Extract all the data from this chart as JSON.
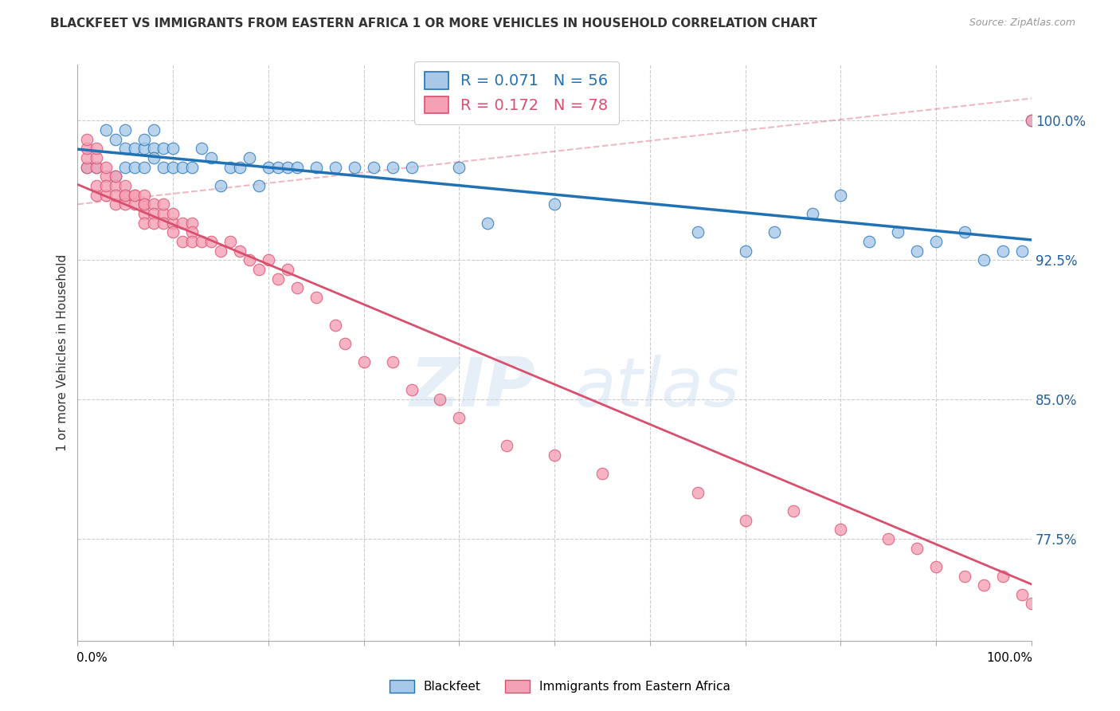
{
  "title": "BLACKFEET VS IMMIGRANTS FROM EASTERN AFRICA 1 OR MORE VEHICLES IN HOUSEHOLD CORRELATION CHART",
  "source": "Source: ZipAtlas.com",
  "ylabel": "1 or more Vehicles in Household",
  "legend_blackfeet": "Blackfeet",
  "legend_immigrants": "Immigrants from Eastern Africa",
  "r_blackfeet": 0.071,
  "n_blackfeet": 56,
  "r_immigrants": 0.172,
  "n_immigrants": 78,
  "x_min": 0.0,
  "x_max": 1.0,
  "y_min": 0.72,
  "y_max": 1.03,
  "y_ticks": [
    0.775,
    0.85,
    0.925,
    1.0
  ],
  "y_tick_labels": [
    "77.5%",
    "85.0%",
    "92.5%",
    "100.0%"
  ],
  "color_blackfeet": "#a8c8e8",
  "color_blackfeet_line": "#2171b5",
  "color_immigrants": "#f4a0b5",
  "color_immigrants_line": "#d94f6e",
  "color_dashed": "#e08090",
  "watermark_zip": "ZIP",
  "watermark_atlas": "atlas",
  "blackfeet_x": [
    0.01,
    0.02,
    0.03,
    0.04,
    0.04,
    0.05,
    0.05,
    0.05,
    0.06,
    0.06,
    0.07,
    0.07,
    0.07,
    0.08,
    0.08,
    0.08,
    0.09,
    0.09,
    0.1,
    0.1,
    0.11,
    0.12,
    0.13,
    0.14,
    0.15,
    0.16,
    0.17,
    0.18,
    0.19,
    0.2,
    0.21,
    0.22,
    0.23,
    0.25,
    0.27,
    0.29,
    0.31,
    0.33,
    0.35,
    0.4,
    0.43,
    0.5,
    0.65,
    0.7,
    0.73,
    0.77,
    0.8,
    0.83,
    0.86,
    0.88,
    0.9,
    0.93,
    0.95,
    0.97,
    0.99,
    1.0
  ],
  "blackfeet_y": [
    0.975,
    0.975,
    0.995,
    0.99,
    0.97,
    0.995,
    0.985,
    0.975,
    0.975,
    0.985,
    0.975,
    0.985,
    0.99,
    0.985,
    0.98,
    0.995,
    0.975,
    0.985,
    0.975,
    0.985,
    0.975,
    0.975,
    0.985,
    0.98,
    0.965,
    0.975,
    0.975,
    0.98,
    0.965,
    0.975,
    0.975,
    0.975,
    0.975,
    0.975,
    0.975,
    0.975,
    0.975,
    0.975,
    0.975,
    0.975,
    0.945,
    0.955,
    0.94,
    0.93,
    0.94,
    0.95,
    0.96,
    0.935,
    0.94,
    0.93,
    0.935,
    0.94,
    0.925,
    0.93,
    0.93,
    1.0
  ],
  "immigrants_x": [
    0.01,
    0.01,
    0.01,
    0.01,
    0.02,
    0.02,
    0.02,
    0.02,
    0.02,
    0.03,
    0.03,
    0.03,
    0.03,
    0.04,
    0.04,
    0.04,
    0.04,
    0.05,
    0.05,
    0.05,
    0.05,
    0.06,
    0.06,
    0.06,
    0.07,
    0.07,
    0.07,
    0.07,
    0.07,
    0.08,
    0.08,
    0.08,
    0.09,
    0.09,
    0.09,
    0.1,
    0.1,
    0.1,
    0.11,
    0.11,
    0.12,
    0.12,
    0.12,
    0.13,
    0.14,
    0.15,
    0.16,
    0.17,
    0.18,
    0.19,
    0.2,
    0.21,
    0.22,
    0.23,
    0.25,
    0.27,
    0.28,
    0.3,
    0.33,
    0.35,
    0.38,
    0.4,
    0.45,
    0.5,
    0.55,
    0.65,
    0.7,
    0.75,
    0.8,
    0.85,
    0.88,
    0.9,
    0.93,
    0.95,
    0.97,
    0.99,
    1.0,
    1.0
  ],
  "immigrants_y": [
    0.975,
    0.98,
    0.985,
    0.99,
    0.975,
    0.98,
    0.985,
    0.96,
    0.965,
    0.97,
    0.975,
    0.96,
    0.965,
    0.965,
    0.97,
    0.955,
    0.96,
    0.96,
    0.965,
    0.955,
    0.96,
    0.96,
    0.955,
    0.96,
    0.955,
    0.96,
    0.95,
    0.955,
    0.945,
    0.955,
    0.95,
    0.945,
    0.95,
    0.945,
    0.955,
    0.945,
    0.95,
    0.94,
    0.945,
    0.935,
    0.945,
    0.94,
    0.935,
    0.935,
    0.935,
    0.93,
    0.935,
    0.93,
    0.925,
    0.92,
    0.925,
    0.915,
    0.92,
    0.91,
    0.905,
    0.89,
    0.88,
    0.87,
    0.87,
    0.855,
    0.85,
    0.84,
    0.825,
    0.82,
    0.81,
    0.8,
    0.785,
    0.79,
    0.78,
    0.775,
    0.77,
    0.76,
    0.755,
    0.75,
    0.755,
    0.745,
    0.74,
    1.0
  ]
}
